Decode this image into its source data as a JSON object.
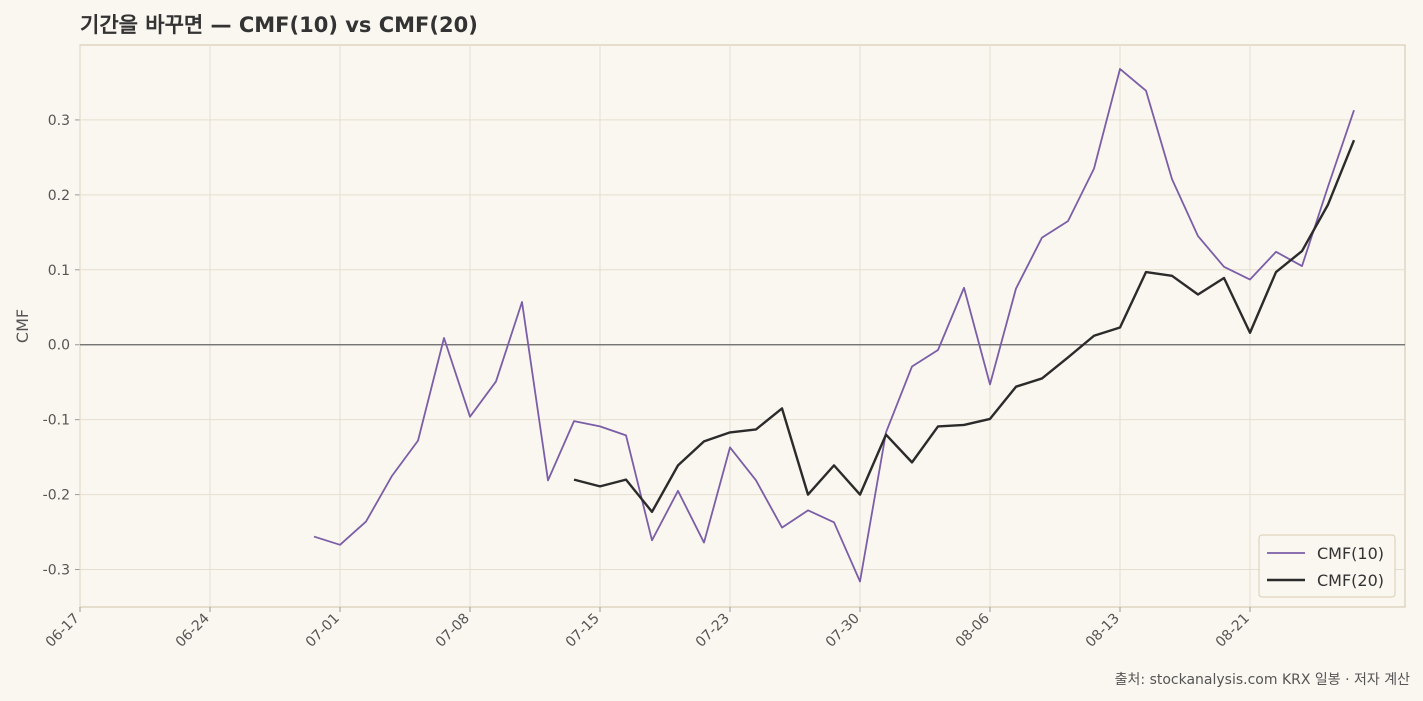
{
  "chart_data": {
    "type": "line",
    "title": "기간을 바꾸면 — CMF(10) vs CMF(20)",
    "y_label": "CMF",
    "source": "출처: stockanalysis.com KRX 일봉 · 저자 계산",
    "categories": [
      "06-17",
      null,
      null,
      null,
      null,
      "06-24",
      null,
      null,
      null,
      null,
      "07-01",
      null,
      null,
      null,
      null,
      "07-08",
      null,
      null,
      null,
      null,
      "07-15",
      null,
      null,
      null,
      null,
      "07-23",
      null,
      null,
      null,
      null,
      "07-30",
      null,
      null,
      null,
      null,
      "08-06",
      null,
      null,
      null,
      null,
      "08-13",
      null,
      null,
      null,
      null,
      "08-21",
      null,
      null,
      null,
      null
    ],
    "series": [
      {
        "name": "CMF(10)",
        "color": "#7b5ea7",
        "values": [
          null,
          null,
          null,
          null,
          null,
          null,
          null,
          null,
          null,
          -0.256,
          -0.267,
          -0.236,
          -0.175,
          -0.128,
          0.009,
          -0.096,
          -0.049,
          0.057,
          -0.181,
          -0.102,
          -0.109,
          -0.121,
          -0.261,
          -0.195,
          -0.264,
          -0.137,
          -0.181,
          -0.244,
          -0.221,
          -0.237,
          -0.316,
          -0.117,
          -0.029,
          -0.007,
          0.076,
          -0.053,
          0.075,
          0.143,
          0.165,
          0.235,
          0.368,
          0.339,
          0.221,
          0.145,
          0.104,
          0.087,
          0.124,
          0.105,
          0.211,
          0.313
        ]
      },
      {
        "name": "CMF(20)",
        "color": "#2b2b2b",
        "values": [
          null,
          null,
          null,
          null,
          null,
          null,
          null,
          null,
          null,
          null,
          null,
          null,
          null,
          null,
          null,
          null,
          null,
          null,
          null,
          -0.18,
          -0.189,
          -0.18,
          -0.223,
          -0.161,
          -0.129,
          -0.117,
          -0.113,
          -0.085,
          -0.2,
          -0.161,
          -0.2,
          -0.12,
          -0.157,
          -0.109,
          -0.107,
          -0.099,
          -0.056,
          -0.045,
          -0.017,
          0.012,
          0.023,
          0.097,
          0.092,
          0.067,
          0.089,
          0.016,
          0.097,
          0.125,
          0.187,
          0.273
        ]
      }
    ],
    "ylim": [
      -0.35,
      0.4
    ],
    "yticks": [
      -0.3,
      -0.2,
      -0.1,
      {
        "value": 0,
        "label": "0.0"
      },
      0.1,
      0.2,
      0.3
    ],
    "reference_line": 0,
    "grid": true,
    "legend": "lower right"
  }
}
